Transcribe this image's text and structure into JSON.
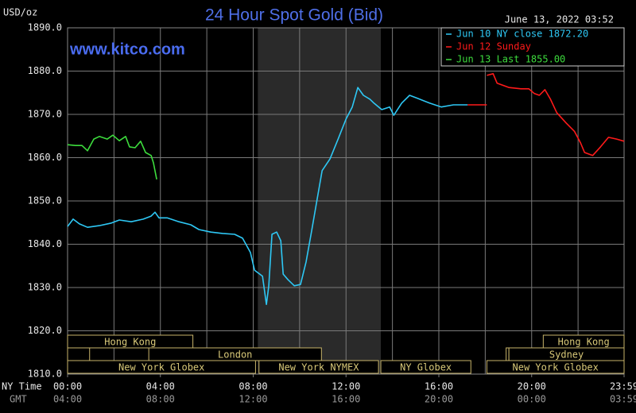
{
  "chart_data": {
    "type": "line",
    "title": "24 Hour Spot Gold (Bid)",
    "timestamp": "June 13, 2022 03:52",
    "website": "www.kitco.com",
    "y_label": "USD/oz",
    "x_label": "NY Time",
    "x2_label": "GMT",
    "xlim": [
      0,
      23.983
    ],
    "ylim": [
      1810,
      1890
    ],
    "yticks": [
      {
        "value": 1810,
        "label": "1810.0"
      },
      {
        "value": 1820,
        "label": "1820.0"
      },
      {
        "value": 1830,
        "label": "1830.0"
      },
      {
        "value": 1840,
        "label": "1840.0"
      },
      {
        "value": 1850,
        "label": "1850.0"
      },
      {
        "value": 1860,
        "label": "1860.0"
      },
      {
        "value": 1870,
        "label": "1870.0"
      },
      {
        "value": 1880,
        "label": "1880.0"
      },
      {
        "value": 1890,
        "label": "1890.0"
      }
    ],
    "xticks": [
      {
        "value": 0,
        "label": "00:00"
      },
      {
        "value": 4,
        "label": "04:00"
      },
      {
        "value": 8,
        "label": "08:00"
      },
      {
        "value": 12,
        "label": "12:00"
      },
      {
        "value": 16,
        "label": "16:00"
      },
      {
        "value": 20,
        "label": "20:00"
      },
      {
        "value": 23.983,
        "label": "23:59"
      }
    ],
    "xticks_gmt": [
      "04:00",
      "08:00",
      "12:00",
      "16:00",
      "20:00",
      "00:00",
      "03:59"
    ],
    "xgrid": [
      0,
      2,
      4,
      6,
      8,
      10,
      12,
      14,
      16,
      18,
      20,
      22
    ],
    "grid": true,
    "shade_x": [
      8.2,
      13.5
    ],
    "legend": "top-right",
    "series": [
      {
        "name": "Jun 10 NY close 1872.20",
        "color": "#2ec8f5",
        "x": [
          0,
          0.24,
          0.51,
          0.86,
          1.37,
          1.89,
          2.23,
          2.74,
          3.26,
          3.6,
          3.77,
          3.94,
          4.29,
          4.8,
          5.31,
          5.66,
          6.17,
          6.68,
          7.2,
          7.54,
          7.88,
          8.06,
          8.4,
          8.57,
          8.67,
          8.81,
          9.01,
          9.19,
          9.29,
          9.5,
          9.77,
          10.04,
          10.28,
          10.52,
          10.7,
          10.97,
          11.31,
          11.66,
          12.0,
          12.27,
          12.51,
          12.75,
          13.03,
          13.2,
          13.54,
          13.88,
          14.06,
          14.4,
          14.74,
          15.08,
          15.6,
          16.11,
          16.63,
          17.24
        ],
        "values": [
          1844.1,
          1845.8,
          1844.7,
          1843.9,
          1844.3,
          1844.9,
          1845.6,
          1845.2,
          1845.8,
          1846.5,
          1847.4,
          1846.1,
          1846.1,
          1845.2,
          1844.5,
          1843.4,
          1842.8,
          1842.5,
          1842.3,
          1841.4,
          1838.1,
          1834.0,
          1832.6,
          1826.1,
          1830.4,
          1842.3,
          1842.8,
          1840.8,
          1833.1,
          1831.8,
          1830.4,
          1830.7,
          1835.9,
          1843.2,
          1848.7,
          1857.0,
          1859.7,
          1864.3,
          1868.9,
          1871.7,
          1876.2,
          1874.4,
          1873.5,
          1872.6,
          1871.1,
          1871.7,
          1869.8,
          1872.6,
          1874.4,
          1873.7,
          1872.6,
          1871.7,
          1872.2,
          1872.2
        ]
      },
      {
        "name": "Jun 12 Sunday",
        "color": "#ff1a1a",
        "x": [
          17.24,
          18.07,
          null,
          18.07,
          18.34,
          18.51,
          19.03,
          19.54,
          19.88,
          20.12,
          20.33,
          20.57,
          20.81,
          21.08,
          21.49,
          21.84,
          22.11,
          22.28,
          22.63,
          22.97,
          23.31,
          23.66,
          23.983
        ],
        "values": [
          1872.2,
          1872.2,
          null,
          1879.0,
          1879.4,
          1877.2,
          1876.2,
          1875.9,
          1875.9,
          1874.8,
          1874.4,
          1875.7,
          1873.5,
          1870.4,
          1868.0,
          1866.1,
          1863.4,
          1861.2,
          1860.5,
          1862.5,
          1864.7,
          1864.3,
          1863.8
        ]
      },
      {
        "name": "Jun 13 Last 1855.00",
        "color": "#3ddc3d",
        "x": [
          0,
          0.34,
          0.62,
          0.86,
          1.13,
          1.37,
          1.71,
          1.95,
          2.23,
          2.5,
          2.67,
          2.91,
          3.15,
          3.36,
          3.6,
          3.7,
          3.84
        ],
        "values": [
          1863.0,
          1862.8,
          1862.8,
          1861.6,
          1864.3,
          1864.9,
          1864.3,
          1865.2,
          1863.9,
          1864.9,
          1862.5,
          1862.3,
          1863.8,
          1861.2,
          1860.5,
          1858.8,
          1855.0
        ]
      }
    ],
    "session_rows": [
      [
        {
          "label": "Hong Kong",
          "start": 0,
          "end": 5.4
        },
        {
          "label": "Hong Kong",
          "start": 20.5,
          "end": 23.983
        }
      ],
      [
        {
          "start": 0,
          "end": 0.95
        },
        {
          "label": "London",
          "start": 3.5,
          "end": 10.94
        },
        {
          "start": 18.9,
          "end": 19.02
        },
        {
          "label": "Sydney",
          "start": 19.02,
          "end": 23.983
        }
      ],
      [
        {
          "label": "New York Globex",
          "start": 0,
          "end": 8.1
        },
        {
          "label": "New York NYMEX",
          "start": 8.25,
          "end": 13.4
        },
        {
          "label": "NY Globex",
          "start": 13.5,
          "end": 17.38
        },
        {
          "label": "New York Globex",
          "start": 18.07,
          "end": 23.983
        }
      ]
    ]
  }
}
